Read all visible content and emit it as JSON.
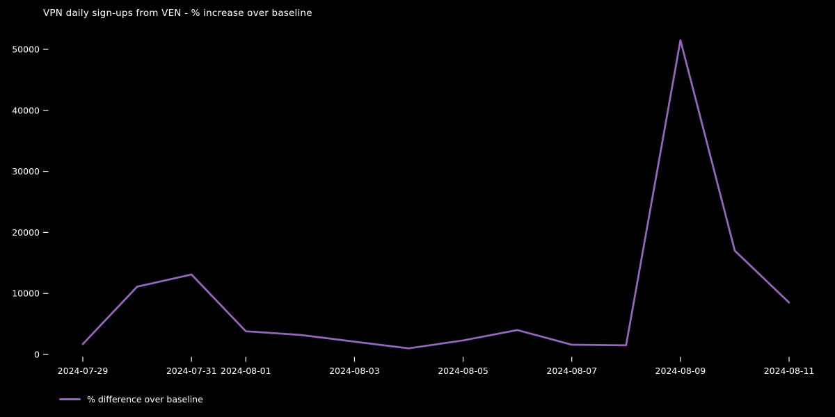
{
  "chart_data": {
    "type": "line",
    "title": "VPN daily sign-ups from VEN - % increase over baseline",
    "background_color": "#000000",
    "text_color": "#ffffff",
    "grid": false,
    "x": [
      "2024-07-29",
      "2024-07-30",
      "2024-07-31",
      "2024-08-01",
      "2024-08-02",
      "2024-08-03",
      "2024-08-04",
      "2024-08-05",
      "2024-08-06",
      "2024-08-07",
      "2024-08-08",
      "2024-08-09",
      "2024-08-10",
      "2024-08-11"
    ],
    "series": [
      {
        "name": "% difference over baseline",
        "color": "#9467bd",
        "values": [
          1700,
          11100,
          13100,
          3800,
          3200,
          2100,
          1000,
          2300,
          4000,
          1600,
          1500,
          51500,
          17000,
          8500
        ]
      }
    ],
    "xticks": [
      "2024-07-29",
      "2024-07-31",
      "2024-08-01",
      "2024-08-03",
      "2024-08-05",
      "2024-08-07",
      "2024-08-09",
      "2024-08-11"
    ],
    "yticks": [
      0,
      10000,
      20000,
      30000,
      40000,
      50000
    ],
    "ylim": [
      0,
      53500
    ],
    "legend_position": "lower-left-below-axis"
  }
}
